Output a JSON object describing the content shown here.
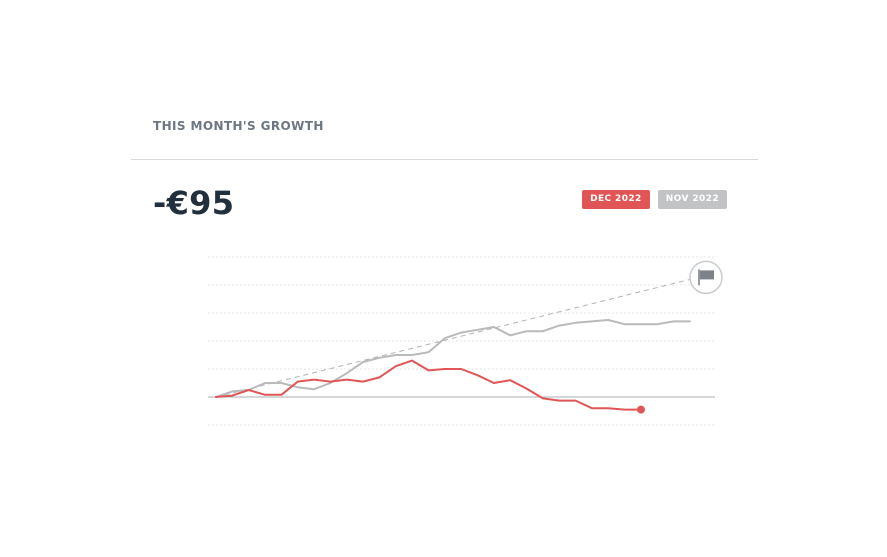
{
  "widget": {
    "title": "THIS MONTH'S GROWTH",
    "value": "-€95"
  },
  "legend": [
    {
      "label": "DEC 2022",
      "color": "#e05656"
    },
    {
      "label": "NOV 2022",
      "color": "#c1c3c5"
    }
  ],
  "icons": {
    "target": "flag-icon"
  },
  "chart_data": {
    "type": "line",
    "grid": true,
    "ylim": [
      -1,
      5
    ],
    "xlim": [
      0,
      31
    ],
    "gridlines": [
      -1,
      0,
      1,
      2,
      3,
      4,
      5
    ],
    "series": [
      {
        "name": "DEC 2022",
        "color": "#e05656",
        "x": [
          0,
          1,
          2,
          3,
          4,
          5,
          6,
          7,
          8,
          9,
          10,
          11,
          12,
          13,
          14,
          15,
          16,
          17,
          18,
          19,
          20,
          21,
          22,
          23,
          24,
          25,
          26
        ],
        "y": [
          0,
          0.05,
          0.25,
          0.08,
          0.08,
          0.55,
          0.62,
          0.55,
          0.62,
          0.55,
          0.7,
          1.1,
          1.3,
          0.95,
          1.0,
          1.0,
          0.78,
          0.5,
          0.6,
          0.3,
          -0.05,
          -0.13,
          -0.13,
          -0.4,
          -0.4,
          -0.45,
          -0.45
        ]
      },
      {
        "name": "NOV 2022",
        "color": "#b8babc",
        "x": [
          0,
          1,
          2,
          3,
          4,
          5,
          6,
          7,
          8,
          9,
          10,
          11,
          12,
          13,
          14,
          15,
          16,
          17,
          18,
          19,
          20,
          21,
          22,
          23,
          24,
          25,
          26,
          27,
          28,
          29
        ],
        "y": [
          0,
          0.2,
          0.25,
          0.5,
          0.5,
          0.35,
          0.28,
          0.5,
          0.85,
          1.25,
          1.4,
          1.5,
          1.5,
          1.6,
          2.1,
          2.3,
          2.4,
          2.5,
          2.2,
          2.35,
          2.35,
          2.55,
          2.65,
          2.7,
          2.75,
          2.6,
          2.6,
          2.6,
          2.7,
          2.7
        ]
      }
    ],
    "target_line": {
      "x": [
        0,
        29
      ],
      "y": [
        0,
        4.2
      ],
      "color": "#b0b2b4",
      "dashed": true
    }
  }
}
